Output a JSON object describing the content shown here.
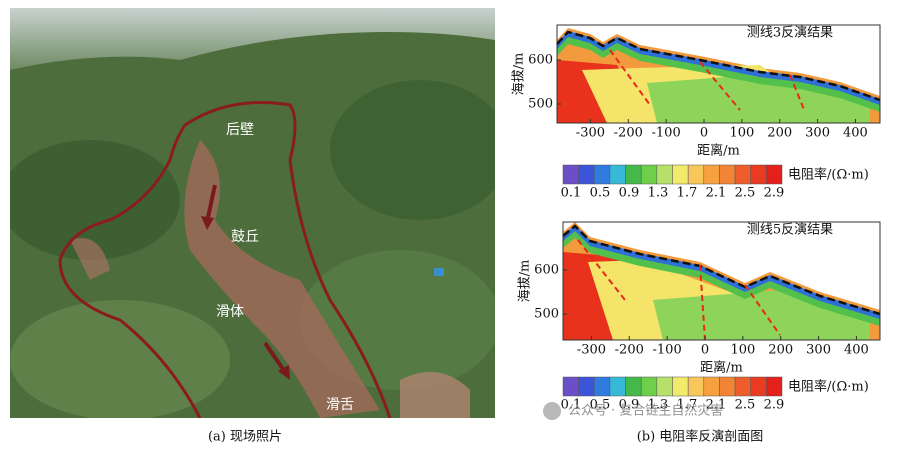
{
  "photo": {
    "labels": [
      "后壁",
      "鼓丘",
      "滑体",
      "滑舌"
    ],
    "caption": "(a) 现场照片"
  },
  "sections": [
    {
      "title": "测线3反演结果",
      "y_label": "海拔/m",
      "x_label": "距离/m",
      "xticks": [
        -300,
        -200,
        -100,
        0,
        100,
        200,
        300,
        400
      ],
      "yticks": [
        500,
        600
      ],
      "colorbar_label": "电阻率/(Ω·m)",
      "colorbar_ticks": [
        0.1,
        0.5,
        0.9,
        1.3,
        1.7,
        2.1,
        2.5,
        2.9
      ]
    },
    {
      "title": "测线5反演结果",
      "y_label": "海拔/m",
      "x_label": "距离/m",
      "xticks": [
        -300,
        -200,
        -100,
        0,
        100,
        200,
        300,
        400
      ],
      "yticks": [
        500,
        600
      ],
      "colorbar_label": "电阻率/(Ω·m)",
      "colorbar_ticks": [
        0.1,
        0.5,
        0.9,
        1.3,
        1.7,
        2.1,
        2.5,
        2.9
      ]
    }
  ],
  "caption": "(b) 电阻率反演剖面图",
  "watermark": "公众号 · 复合链生自然灾害"
}
